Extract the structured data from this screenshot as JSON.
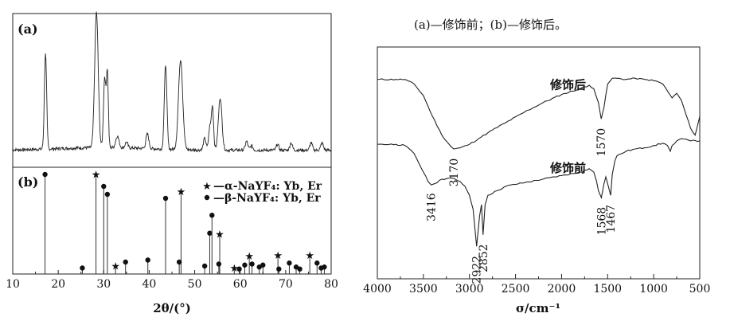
{
  "caption": "(a)—修饰前；(b)—修饰后。",
  "chart_data": [
    {
      "type": "line",
      "panel_label": "(a)",
      "title": "",
      "xlabel": "2θ/(°)",
      "ylabel": "",
      "xlim": [
        10,
        80
      ],
      "ylim": [
        0,
        100
      ],
      "xticks": [
        10,
        20,
        30,
        40,
        50,
        60,
        70,
        80
      ],
      "y_ticks_shown": false,
      "grid": false,
      "baseline": 9,
      "peaks": [
        {
          "x": 17.2,
          "y": 66,
          "w": 0.35
        },
        {
          "x": 28.4,
          "y": 93,
          "w": 0.55
        },
        {
          "x": 30.2,
          "y": 48,
          "w": 0.35
        },
        {
          "x": 30.8,
          "y": 52,
          "w": 0.3
        },
        {
          "x": 33.0,
          "y": 8,
          "w": 0.5
        },
        {
          "x": 35.0,
          "y": 4,
          "w": 0.4
        },
        {
          "x": 39.6,
          "y": 10,
          "w": 0.45
        },
        {
          "x": 43.6,
          "y": 58,
          "w": 0.4
        },
        {
          "x": 46.9,
          "y": 62,
          "w": 0.65
        },
        {
          "x": 52.2,
          "y": 8,
          "w": 0.4
        },
        {
          "x": 53.3,
          "y": 15,
          "w": 0.35
        },
        {
          "x": 53.9,
          "y": 30,
          "w": 0.35
        },
        {
          "x": 55.6,
          "y": 36,
          "w": 0.55
        },
        {
          "x": 61.4,
          "y": 6,
          "w": 0.4
        },
        {
          "x": 62.5,
          "y": 3,
          "w": 0.4
        },
        {
          "x": 68.2,
          "y": 4,
          "w": 0.4
        },
        {
          "x": 71.2,
          "y": 5,
          "w": 0.4
        },
        {
          "x": 75.6,
          "y": 5,
          "w": 0.4
        },
        {
          "x": 78.0,
          "y": 5,
          "w": 0.4
        }
      ]
    },
    {
      "type": "bar",
      "panel_label": "(b)",
      "title": "",
      "xlabel": "2θ/(°)",
      "ylabel": "",
      "xlim": [
        10,
        80
      ],
      "ylim": [
        0,
        100
      ],
      "xticks": [
        10,
        20,
        30,
        40,
        50,
        60,
        70,
        80
      ],
      "xticklabels": [
        "10",
        "20",
        "30",
        "40",
        "50",
        "60",
        "70",
        "80"
      ],
      "grid": false,
      "legend_position": "top-right",
      "series": [
        {
          "name": "—α-NaYF₄: Yb, Er",
          "marker": "star",
          "x": [
            28.3,
            32.6,
            47.0,
            55.5,
            58.7,
            62.0,
            68.3,
            75.3
          ],
          "y": [
            100,
            8,
            83,
            40,
            6,
            18,
            19,
            19
          ]
        },
        {
          "name": "—β-NaYF₄: Yb, Er",
          "marker": "circle",
          "x": [
            17.1,
            25.3,
            30.0,
            30.8,
            34.8,
            39.7,
            43.6,
            46.6,
            52.2,
            53.3,
            53.8,
            55.3,
            59.8,
            61.0,
            62.6,
            64.2,
            65.0,
            68.5,
            70.8,
            72.3,
            73.1,
            76.9,
            77.8,
            78.5
          ],
          "y": [
            100,
            6,
            88,
            80,
            12,
            14,
            76,
            12,
            8,
            41,
            59,
            10,
            5,
            9,
            10,
            7,
            9,
            5,
            11,
            7,
            5,
            11,
            6,
            7
          ]
        }
      ]
    },
    {
      "type": "line",
      "title": "",
      "xlabel": "σ/cm⁻¹",
      "ylabel": "",
      "xlim": [
        4000,
        500
      ],
      "ylim": [
        0,
        100
      ],
      "xticks": [
        4000,
        3500,
        3000,
        2500,
        2000,
        1500,
        1000,
        500
      ],
      "xticklabels": [
        "4000",
        "3500",
        "3000",
        "2500",
        "2000",
        "1500",
        "1000",
        "500"
      ],
      "x_reversed": true,
      "grid": false,
      "series": [
        {
          "name": "修饰后",
          "x": [
            4000,
            3800,
            3700,
            3600,
            3500,
            3400,
            3300,
            3200,
            3170,
            3100,
            3000,
            2900,
            2800,
            2600,
            2400,
            2200,
            2000,
            1800,
            1700,
            1650,
            1600,
            1570,
            1540,
            1500,
            1450,
            1400,
            1300,
            1200,
            1100,
            1000,
            950,
            900,
            850,
            800,
            750,
            700,
            650,
            600,
            550,
            500
          ],
          "y": [
            86,
            86,
            86,
            84,
            79,
            70,
            62,
            57,
            56,
            56.5,
            58,
            60.5,
            63,
            67.5,
            72,
            76,
            79.5,
            82,
            83.5,
            82,
            76,
            69,
            74,
            84,
            86.5,
            86.5,
            86,
            86.5,
            86,
            85.5,
            85,
            84,
            81,
            78,
            80,
            77,
            71,
            65,
            62,
            70
          ]
        },
        {
          "name": "修饰前",
          "x": [
            4000,
            3800,
            3700,
            3600,
            3500,
            3450,
            3416,
            3380,
            3300,
            3200,
            3100,
            3050,
            3000,
            2960,
            2922,
            2890,
            2870,
            2852,
            2830,
            2800,
            2700,
            2600,
            2400,
            2200,
            2000,
            1800,
            1700,
            1650,
            1620,
            1600,
            1568,
            1540,
            1520,
            1500,
            1480,
            1467,
            1450,
            1420,
            1400,
            1300,
            1200,
            1100,
            1000,
            900,
            850,
            820,
            800,
            750,
            700,
            600,
            500
          ],
          "y": [
            58,
            58,
            57.5,
            54,
            46,
            42,
            40.5,
            41,
            43,
            43.5,
            42,
            40,
            36,
            30,
            14,
            27,
            32,
            19,
            32,
            36,
            38,
            40,
            41.5,
            43,
            44.5,
            46,
            47.5,
            46,
            42,
            38,
            35,
            41,
            44,
            41,
            38,
            36,
            45,
            51,
            53,
            55,
            56,
            56.5,
            57.5,
            58.5,
            57.5,
            55,
            57.5,
            59.5,
            60.5,
            59.5,
            59.5
          ]
        }
      ],
      "annotations": [
        {
          "text": "修饰后",
          "x": 1930,
          "y": 82
        },
        {
          "text": "修饰前",
          "x": 1930,
          "y": 46
        },
        {
          "text": "3170",
          "x": 3170,
          "y": 52,
          "rotate": true
        },
        {
          "text": "1570",
          "x": 1570,
          "y": 65,
          "rotate": true
        },
        {
          "text": "3416",
          "x": 3416,
          "y": 37,
          "rotate": true
        },
        {
          "text": "2922",
          "x": 2922,
          "y": 10,
          "rotate": true
        },
        {
          "text": "2852",
          "x": 2852,
          "y": 15,
          "rotate": true
        },
        {
          "text": "1568",
          "x": 1568,
          "y": 31,
          "rotate": true
        },
        {
          "text": "1467",
          "x": 1467,
          "y": 32,
          "rotate": true
        }
      ]
    }
  ]
}
